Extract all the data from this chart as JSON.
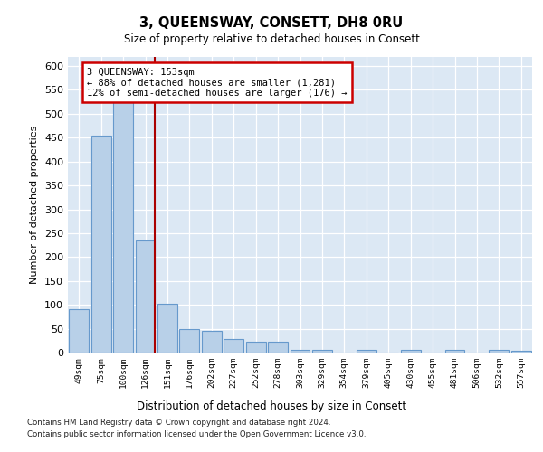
{
  "title": "3, QUEENSWAY, CONSETT, DH8 0RU",
  "subtitle": "Size of property relative to detached houses in Consett",
  "xlabel": "Distribution of detached houses by size in Consett",
  "ylabel": "Number of detached properties",
  "categories": [
    "49sqm",
    "75sqm",
    "100sqm",
    "126sqm",
    "151sqm",
    "176sqm",
    "202sqm",
    "227sqm",
    "252sqm",
    "278sqm",
    "303sqm",
    "329sqm",
    "354sqm",
    "379sqm",
    "405sqm",
    "430sqm",
    "455sqm",
    "481sqm",
    "506sqm",
    "532sqm",
    "557sqm"
  ],
  "values": [
    90,
    455,
    545,
    235,
    103,
    50,
    45,
    28,
    22,
    22,
    5,
    5,
    0,
    5,
    0,
    5,
    0,
    5,
    0,
    5,
    3
  ],
  "bar_color": "#b8d0e8",
  "bar_edge_color": "#6699cc",
  "vline_x_index": 3,
  "vline_color": "#aa0000",
  "annotation_text": "3 QUEENSWAY: 153sqm\n← 88% of detached houses are smaller (1,281)\n12% of semi-detached houses are larger (176) →",
  "annotation_box_color": "white",
  "annotation_box_edge_color": "#cc0000",
  "ylim": [
    0,
    620
  ],
  "yticks": [
    0,
    50,
    100,
    150,
    200,
    250,
    300,
    350,
    400,
    450,
    500,
    550,
    600
  ],
  "background_color": "#dce8f4",
  "grid_color": "#c8d8ec",
  "footer_line1": "Contains HM Land Registry data © Crown copyright and database right 2024.",
  "footer_line2": "Contains public sector information licensed under the Open Government Licence v3.0."
}
